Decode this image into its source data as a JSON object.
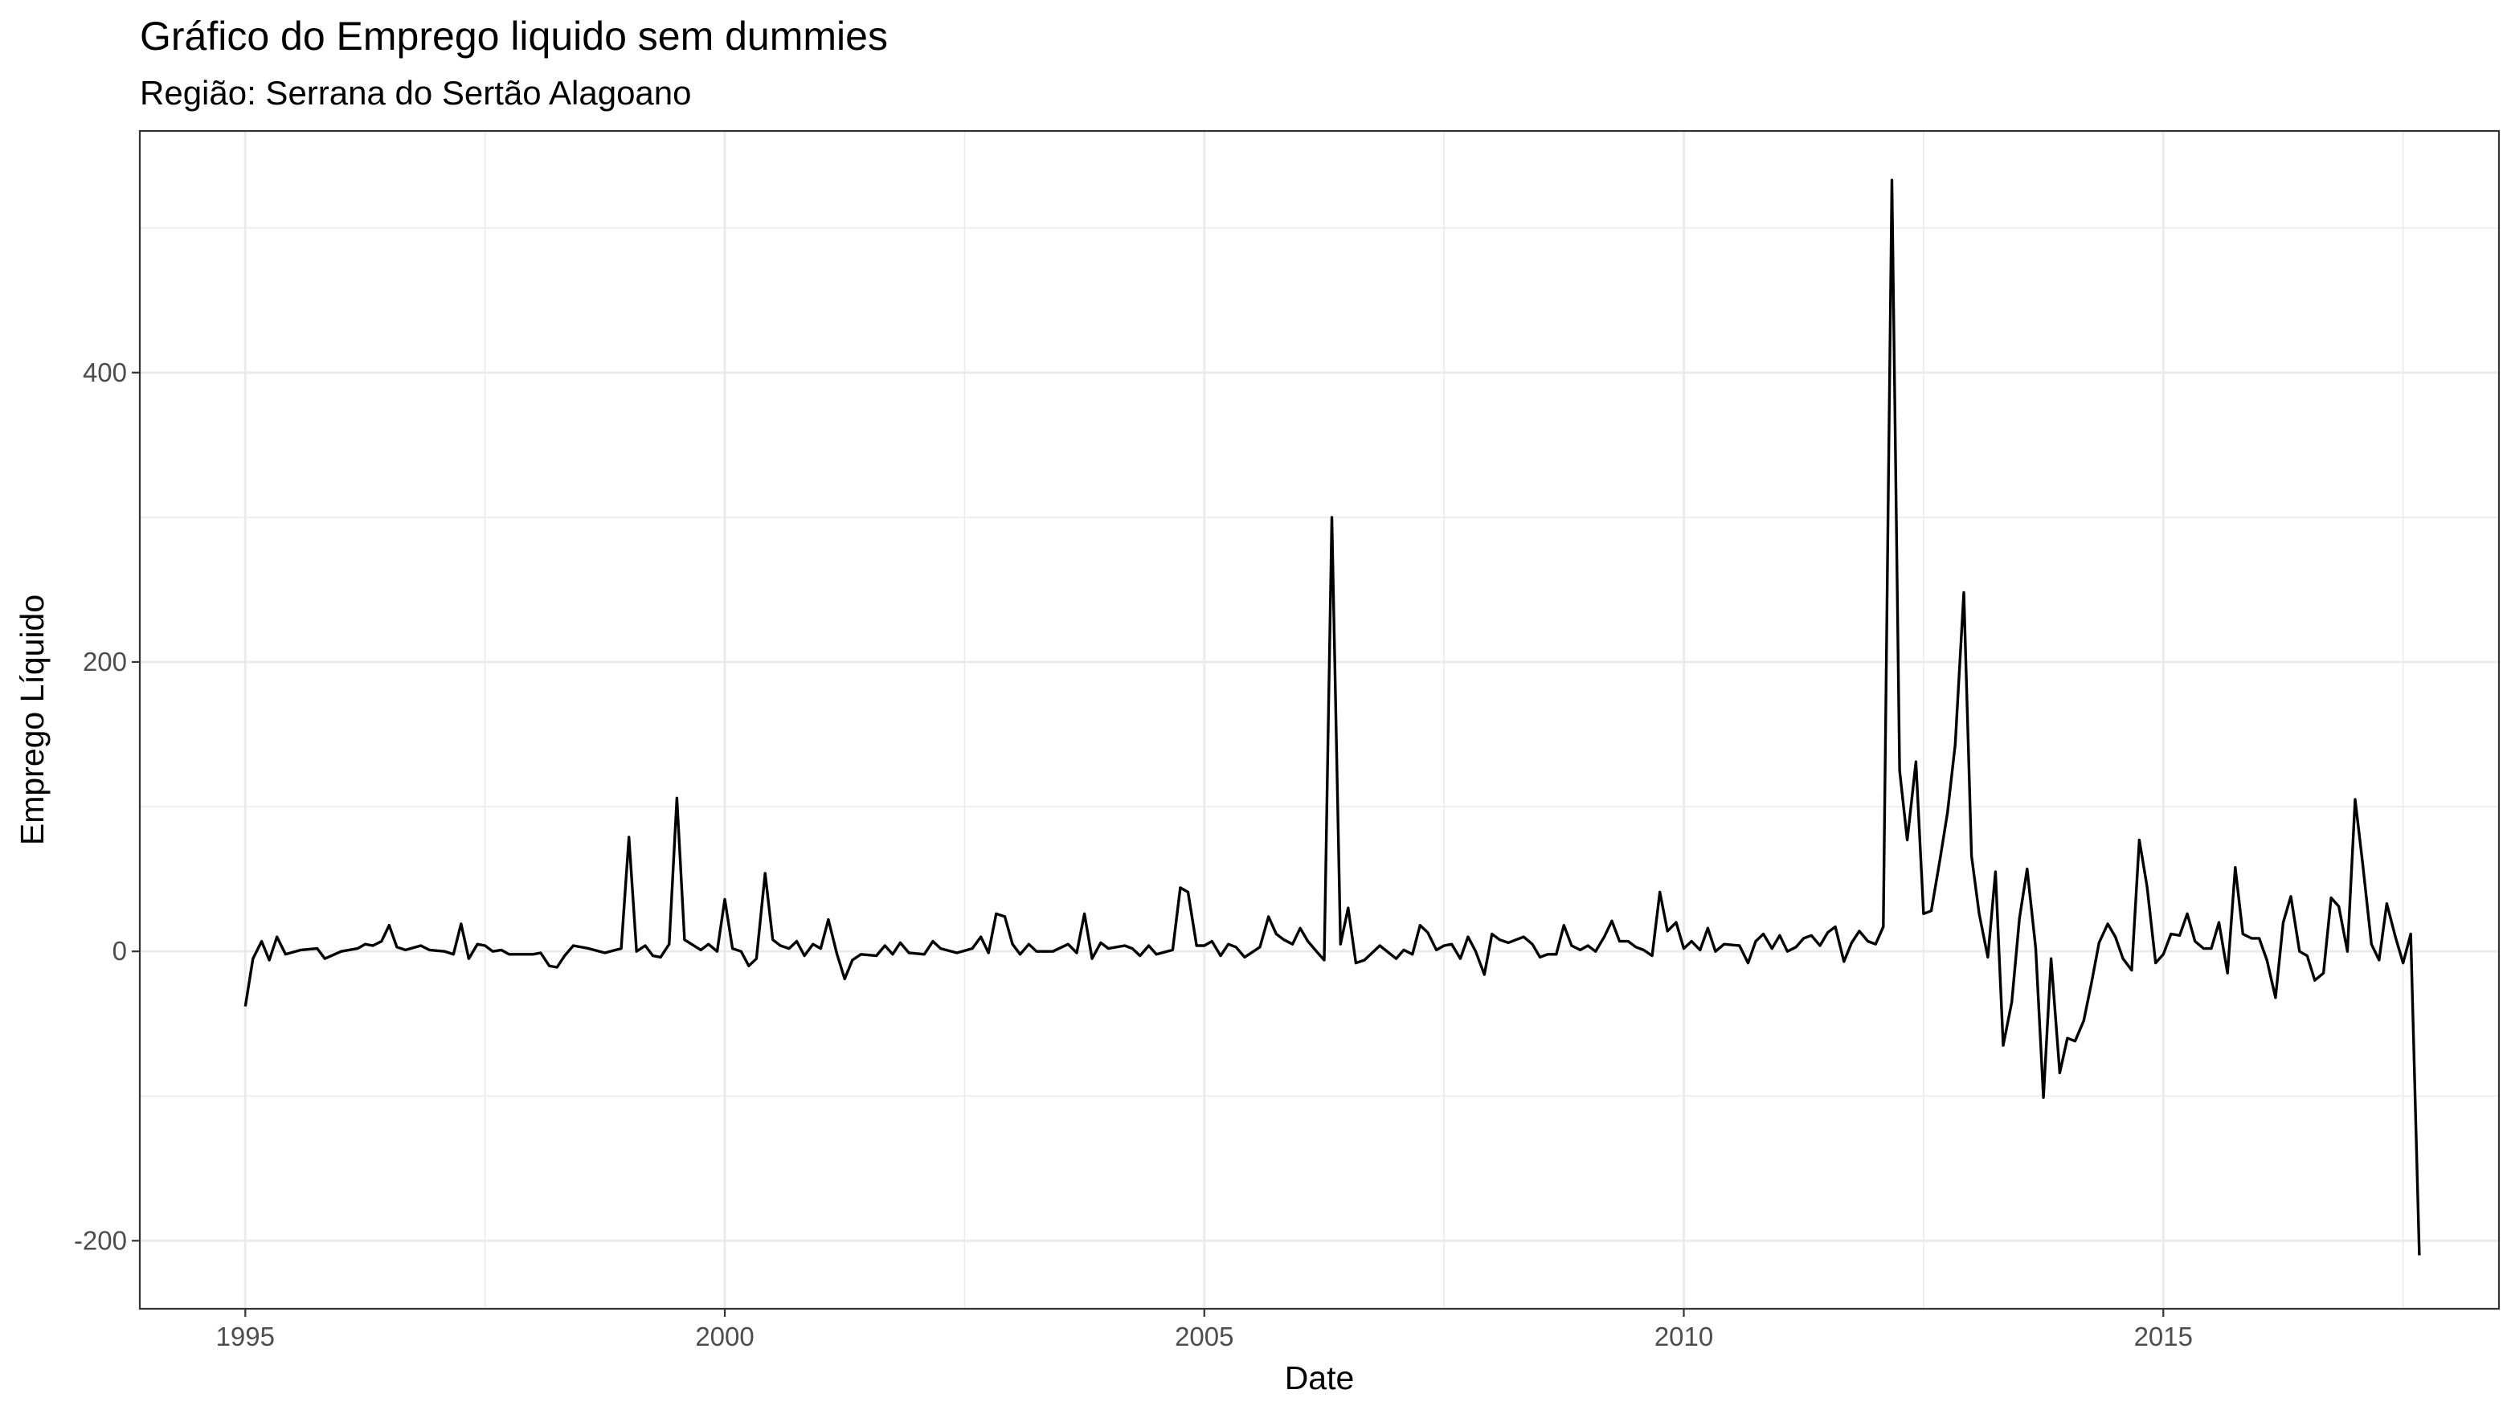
{
  "chart_data": {
    "type": "line",
    "title": "Gráfico do Emprego liquido sem dummies",
    "subtitle": "Região: Serrana do Sertão Alagoano",
    "xlabel": "Date",
    "ylabel": "Emprego Líquido",
    "xlim": [
      1993.9,
      2018.5
    ],
    "ylim": [
      -247,
      567
    ],
    "x_ticks": [
      "1995",
      "2000",
      "2005",
      "2010",
      "2015"
    ],
    "y_ticks": [
      "-200",
      "0",
      "200",
      "400"
    ],
    "grid": true,
    "series": [
      {
        "line_color": "#000000",
        "points": [
          [
            1995.0,
            -38
          ],
          [
            1995.08,
            -5
          ],
          [
            1995.17,
            7
          ],
          [
            1995.25,
            -6
          ],
          [
            1995.33,
            10
          ],
          [
            1995.42,
            -2
          ],
          [
            1995.58,
            1
          ],
          [
            1995.75,
            2
          ],
          [
            1995.83,
            -5
          ],
          [
            1996.0,
            0
          ],
          [
            1996.17,
            2
          ],
          [
            1996.25,
            5
          ],
          [
            1996.33,
            4
          ],
          [
            1996.42,
            7
          ],
          [
            1996.5,
            18
          ],
          [
            1996.58,
            3
          ],
          [
            1996.67,
            1
          ],
          [
            1996.83,
            4
          ],
          [
            1996.92,
            1
          ],
          [
            1997.08,
            0
          ],
          [
            1997.17,
            -2
          ],
          [
            1997.25,
            19
          ],
          [
            1997.33,
            -5
          ],
          [
            1997.42,
            5
          ],
          [
            1997.5,
            4
          ],
          [
            1997.58,
            0
          ],
          [
            1997.67,
            1
          ],
          [
            1997.75,
            -2
          ],
          [
            1998.0,
            -2
          ],
          [
            1998.08,
            -1
          ],
          [
            1998.17,
            -10
          ],
          [
            1998.25,
            -11
          ],
          [
            1998.33,
            -3
          ],
          [
            1998.42,
            4
          ],
          [
            1998.58,
            2
          ],
          [
            1998.75,
            -1
          ],
          [
            1998.92,
            2
          ],
          [
            1999.0,
            79
          ],
          [
            1999.08,
            0
          ],
          [
            1999.17,
            4
          ],
          [
            1999.25,
            -3
          ],
          [
            1999.33,
            -4
          ],
          [
            1999.42,
            5
          ],
          [
            1999.5,
            106
          ],
          [
            1999.58,
            8
          ],
          [
            1999.75,
            1
          ],
          [
            1999.83,
            5
          ],
          [
            1999.92,
            0
          ],
          [
            2000.0,
            36
          ],
          [
            2000.08,
            2
          ],
          [
            2000.17,
            0
          ],
          [
            2000.25,
            -10
          ],
          [
            2000.33,
            -5
          ],
          [
            2000.42,
            54
          ],
          [
            2000.5,
            8
          ],
          [
            2000.58,
            4
          ],
          [
            2000.67,
            2
          ],
          [
            2000.75,
            7
          ],
          [
            2000.83,
            -3
          ],
          [
            2000.92,
            5
          ],
          [
            2001.0,
            2
          ],
          [
            2001.08,
            22
          ],
          [
            2001.17,
            -2
          ],
          [
            2001.25,
            -19
          ],
          [
            2001.33,
            -6
          ],
          [
            2001.42,
            -2
          ],
          [
            2001.58,
            -3
          ],
          [
            2001.67,
            4
          ],
          [
            2001.75,
            -2
          ],
          [
            2001.83,
            6
          ],
          [
            2001.92,
            -1
          ],
          [
            2002.08,
            -2
          ],
          [
            2002.17,
            7
          ],
          [
            2002.25,
            2
          ],
          [
            2002.42,
            -1
          ],
          [
            2002.58,
            2
          ],
          [
            2002.67,
            10
          ],
          [
            2002.75,
            -1
          ],
          [
            2002.83,
            26
          ],
          [
            2002.92,
            24
          ],
          [
            2003.0,
            5
          ],
          [
            2003.08,
            -2
          ],
          [
            2003.17,
            5
          ],
          [
            2003.25,
            0
          ],
          [
            2003.42,
            0
          ],
          [
            2003.58,
            5
          ],
          [
            2003.67,
            -1
          ],
          [
            2003.75,
            26
          ],
          [
            2003.83,
            -5
          ],
          [
            2003.92,
            6
          ],
          [
            2004.0,
            2
          ],
          [
            2004.17,
            4
          ],
          [
            2004.25,
            2
          ],
          [
            2004.33,
            -3
          ],
          [
            2004.42,
            4
          ],
          [
            2004.5,
            -2
          ],
          [
            2004.67,
            1
          ],
          [
            2004.75,
            44
          ],
          [
            2004.83,
            41
          ],
          [
            2004.92,
            4
          ],
          [
            2005.0,
            4
          ],
          [
            2005.08,
            7
          ],
          [
            2005.17,
            -3
          ],
          [
            2005.25,
            5
          ],
          [
            2005.33,
            3
          ],
          [
            2005.42,
            -4
          ],
          [
            2005.58,
            3
          ],
          [
            2005.67,
            24
          ],
          [
            2005.75,
            12
          ],
          [
            2005.83,
            8
          ],
          [
            2005.92,
            5
          ],
          [
            2006.0,
            16
          ],
          [
            2006.08,
            7
          ],
          [
            2006.17,
            0
          ],
          [
            2006.25,
            -6
          ],
          [
            2006.33,
            300
          ],
          [
            2006.42,
            5
          ],
          [
            2006.5,
            30
          ],
          [
            2006.58,
            -8
          ],
          [
            2006.67,
            -6
          ],
          [
            2006.75,
            -1
          ],
          [
            2006.83,
            4
          ],
          [
            2007.0,
            -5
          ],
          [
            2007.08,
            1
          ],
          [
            2007.17,
            -2
          ],
          [
            2007.25,
            18
          ],
          [
            2007.33,
            13
          ],
          [
            2007.42,
            1
          ],
          [
            2007.5,
            4
          ],
          [
            2007.58,
            5
          ],
          [
            2007.67,
            -5
          ],
          [
            2007.75,
            10
          ],
          [
            2007.83,
            0
          ],
          [
            2007.92,
            -16
          ],
          [
            2008.0,
            12
          ],
          [
            2008.08,
            8
          ],
          [
            2008.17,
            6
          ],
          [
            2008.25,
            8
          ],
          [
            2008.33,
            10
          ],
          [
            2008.42,
            5
          ],
          [
            2008.5,
            -4
          ],
          [
            2008.58,
            -2
          ],
          [
            2008.67,
            -2
          ],
          [
            2008.75,
            18
          ],
          [
            2008.83,
            4
          ],
          [
            2008.92,
            1
          ],
          [
            2009.0,
            4
          ],
          [
            2009.08,
            0
          ],
          [
            2009.17,
            10
          ],
          [
            2009.25,
            21
          ],
          [
            2009.33,
            7
          ],
          [
            2009.42,
            7
          ],
          [
            2009.5,
            3
          ],
          [
            2009.58,
            1
          ],
          [
            2009.67,
            -3
          ],
          [
            2009.75,
            41
          ],
          [
            2009.83,
            14
          ],
          [
            2009.92,
            20
          ],
          [
            2010.0,
            2
          ],
          [
            2010.08,
            7
          ],
          [
            2010.17,
            1
          ],
          [
            2010.25,
            16
          ],
          [
            2010.33,
            0
          ],
          [
            2010.42,
            5
          ],
          [
            2010.58,
            4
          ],
          [
            2010.67,
            -8
          ],
          [
            2010.75,
            7
          ],
          [
            2010.83,
            12
          ],
          [
            2010.92,
            2
          ],
          [
            2011.0,
            11
          ],
          [
            2011.08,
            0
          ],
          [
            2011.17,
            3
          ],
          [
            2011.25,
            9
          ],
          [
            2011.33,
            11
          ],
          [
            2011.42,
            4
          ],
          [
            2011.5,
            13
          ],
          [
            2011.58,
            17
          ],
          [
            2011.67,
            -7
          ],
          [
            2011.75,
            6
          ],
          [
            2011.83,
            14
          ],
          [
            2011.92,
            7
          ],
          [
            2012.0,
            5
          ],
          [
            2012.08,
            17
          ],
          [
            2012.17,
            533
          ],
          [
            2012.25,
            125
          ],
          [
            2012.33,
            77
          ],
          [
            2012.42,
            131
          ],
          [
            2012.5,
            26
          ],
          [
            2012.58,
            28
          ],
          [
            2012.67,
            63
          ],
          [
            2012.75,
            96
          ],
          [
            2012.83,
            143
          ],
          [
            2012.92,
            248
          ],
          [
            2013.0,
            66
          ],
          [
            2013.08,
            26
          ],
          [
            2013.17,
            -4
          ],
          [
            2013.25,
            55
          ],
          [
            2013.33,
            -65
          ],
          [
            2013.42,
            -35
          ],
          [
            2013.5,
            23
          ],
          [
            2013.58,
            57
          ],
          [
            2013.67,
            2
          ],
          [
            2013.75,
            -101
          ],
          [
            2013.83,
            -5
          ],
          [
            2013.92,
            -84
          ],
          [
            2014.0,
            -60
          ],
          [
            2014.08,
            -62
          ],
          [
            2014.17,
            -48
          ],
          [
            2014.25,
            -22
          ],
          [
            2014.33,
            6
          ],
          [
            2014.42,
            19
          ],
          [
            2014.5,
            10
          ],
          [
            2014.58,
            -5
          ],
          [
            2014.67,
            -13
          ],
          [
            2014.75,
            77
          ],
          [
            2014.83,
            45
          ],
          [
            2014.92,
            -8
          ],
          [
            2015.0,
            -2
          ],
          [
            2015.08,
            12
          ],
          [
            2015.17,
            11
          ],
          [
            2015.25,
            26
          ],
          [
            2015.33,
            7
          ],
          [
            2015.42,
            2
          ],
          [
            2015.5,
            2
          ],
          [
            2015.58,
            20
          ],
          [
            2015.67,
            -15
          ],
          [
            2015.75,
            58
          ],
          [
            2015.83,
            12
          ],
          [
            2015.92,
            9
          ],
          [
            2016.0,
            9
          ],
          [
            2016.08,
            -6
          ],
          [
            2016.17,
            -32
          ],
          [
            2016.25,
            20
          ],
          [
            2016.33,
            38
          ],
          [
            2016.42,
            0
          ],
          [
            2016.5,
            -3
          ],
          [
            2016.58,
            -20
          ],
          [
            2016.67,
            -15
          ],
          [
            2016.75,
            37
          ],
          [
            2016.83,
            31
          ],
          [
            2016.92,
            0
          ],
          [
            2017.0,
            105
          ],
          [
            2017.08,
            60
          ],
          [
            2017.17,
            5
          ],
          [
            2017.25,
            -6
          ],
          [
            2017.33,
            33
          ],
          [
            2017.42,
            10
          ],
          [
            2017.5,
            -8
          ],
          [
            2017.58,
            12
          ],
          [
            2017.67,
            -210
          ]
        ]
      }
    ]
  }
}
